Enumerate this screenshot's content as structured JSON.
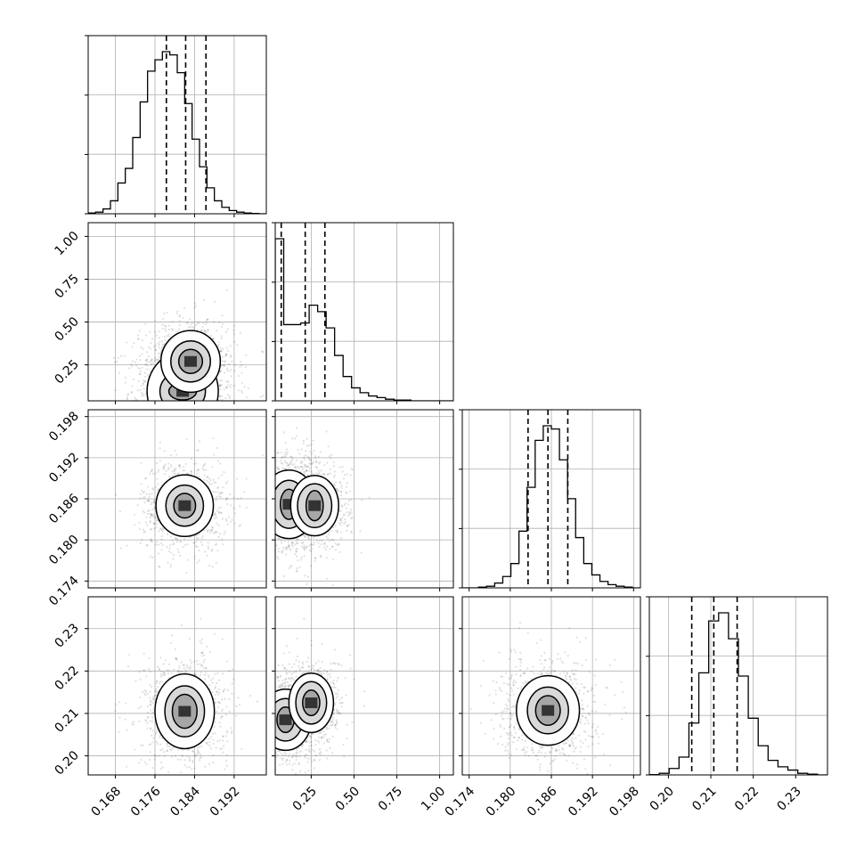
{
  "chart_data": {
    "type": "corner",
    "parameters": [
      "",
      "",
      "",
      ""
    ],
    "grid": true,
    "x_ticks": [
      [
        0.168,
        0.176,
        0.184,
        0.192
      ],
      [
        0.25,
        0.5,
        0.75,
        1.0
      ],
      [
        0.174,
        0.18,
        0.186,
        0.192,
        0.198
      ],
      [
        0.2,
        0.21,
        0.22,
        0.23
      ]
    ],
    "x_tick_labels": [
      [
        "0.168",
        "0.176",
        "0.184",
        "0.192"
      ],
      [
        "0.25",
        "0.50",
        "0.75",
        "1.00"
      ],
      [
        "0.174",
        "0.180",
        "0.186",
        "0.192",
        "0.198"
      ],
      [
        "0.20",
        "0.21",
        "0.22",
        "0.23"
      ]
    ],
    "y_ticks": {
      "1": [
        0.25,
        0.5,
        0.75,
        1.0
      ],
      "2": [
        0.174,
        0.18,
        0.186,
        0.192,
        0.198
      ],
      "3": [
        0.2,
        0.21,
        0.22,
        0.23
      ]
    },
    "y_tick_labels": {
      "1": [
        "0.25",
        "0.50",
        "0.75",
        "1.00"
      ],
      "2": [
        "0.174",
        "0.180",
        "0.186",
        "0.192",
        "0.198"
      ],
      "3": [
        "0.20",
        "0.21",
        "0.22",
        "0.23"
      ]
    },
    "ranges": [
      [
        0.1625,
        0.1985
      ],
      [
        0.04,
        1.08
      ],
      [
        0.173,
        0.199
      ],
      [
        0.1955,
        0.2375
      ]
    ],
    "quantiles": [
      [
        0.1783,
        0.1822,
        0.1863
      ],
      [
        0.075,
        0.215,
        0.33
      ],
      [
        0.1826,
        0.1855,
        0.1884
      ],
      [
        0.2055,
        0.2107,
        0.2162
      ]
    ],
    "histograms": [
      [
        0.005,
        0.01,
        0.03,
        0.08,
        0.19,
        0.28,
        0.47,
        0.69,
        0.88,
        0.95,
        1.0,
        0.98,
        0.87,
        0.68,
        0.46,
        0.29,
        0.16,
        0.08,
        0.04,
        0.02,
        0.01,
        0.005,
        0.002,
        0.0
      ],
      [
        1.0,
        0.47,
        0.47,
        0.48,
        0.59,
        0.55,
        0.45,
        0.28,
        0.15,
        0.08,
        0.05,
        0.03,
        0.02,
        0.01,
        0.005,
        0.005,
        0.0,
        0.0,
        0.0,
        0.0,
        0.0
      ],
      [
        0.0,
        0.0,
        0.005,
        0.01,
        0.03,
        0.07,
        0.15,
        0.35,
        0.62,
        0.91,
        1.0,
        0.98,
        0.79,
        0.55,
        0.31,
        0.15,
        0.08,
        0.04,
        0.02,
        0.01,
        0.005,
        0.0
      ],
      [
        0.002,
        0.01,
        0.04,
        0.11,
        0.32,
        0.63,
        0.95,
        1.0,
        0.84,
        0.61,
        0.35,
        0.18,
        0.09,
        0.05,
        0.03,
        0.01,
        0.005,
        0.0
      ]
    ],
    "pair_contours": [
      {
        "row": 1,
        "col": 0,
        "center": [
          0.1816,
          0.095
        ],
        "levels": [
          [
            0.0028,
            0.05
          ],
          [
            0.0046,
            0.12
          ],
          [
            0.0072,
            0.23
          ]
        ],
        "secondary": {
          "center": [
            0.1832,
            0.27
          ],
          "levels": [
            [
              0.0024,
              0.07
            ],
            [
              0.004,
              0.12
            ],
            [
              0.006,
              0.18
            ]
          ]
        }
      },
      {
        "row": 2,
        "col": 0,
        "center": [
          0.182,
          0.185
        ],
        "levels": [
          [
            0.0022,
            0.0018
          ],
          [
            0.0038,
            0.003
          ],
          [
            0.0058,
            0.0045
          ]
        ]
      },
      {
        "row": 2,
        "col": 1,
        "center": [
          0.12,
          0.1852
        ],
        "levels": [
          [
            0.05,
            0.0022
          ],
          [
            0.1,
            0.0035
          ],
          [
            0.16,
            0.005
          ]
        ],
        "secondary": {
          "center": [
            0.27,
            0.185
          ],
          "levels": [
            [
              0.05,
              0.0022
            ],
            [
              0.1,
              0.0032
            ],
            [
              0.14,
              0.0044
            ]
          ]
        }
      },
      {
        "row": 3,
        "col": 0,
        "center": [
          0.182,
          0.2105
        ],
        "levels": [
          [
            0.0025,
            0.004
          ],
          [
            0.004,
            0.006
          ],
          [
            0.006,
            0.0088
          ]
        ]
      },
      {
        "row": 3,
        "col": 1,
        "center": [
          0.1,
          0.2085
        ],
        "levels": [
          [
            0.05,
            0.003
          ],
          [
            0.1,
            0.005
          ],
          [
            0.15,
            0.0072
          ]
        ],
        "secondary": {
          "center": [
            0.25,
            0.2125
          ],
          "levels": [
            [
              0.05,
              0.003
            ],
            [
              0.09,
              0.005
            ],
            [
              0.13,
              0.007
            ]
          ]
        }
      },
      {
        "row": 3,
        "col": 2,
        "center": [
          0.1855,
          0.2107
        ],
        "levels": [
          [
            0.0018,
            0.0035
          ],
          [
            0.003,
            0.0055
          ],
          [
            0.0046,
            0.0082
          ]
        ]
      }
    ]
  }
}
